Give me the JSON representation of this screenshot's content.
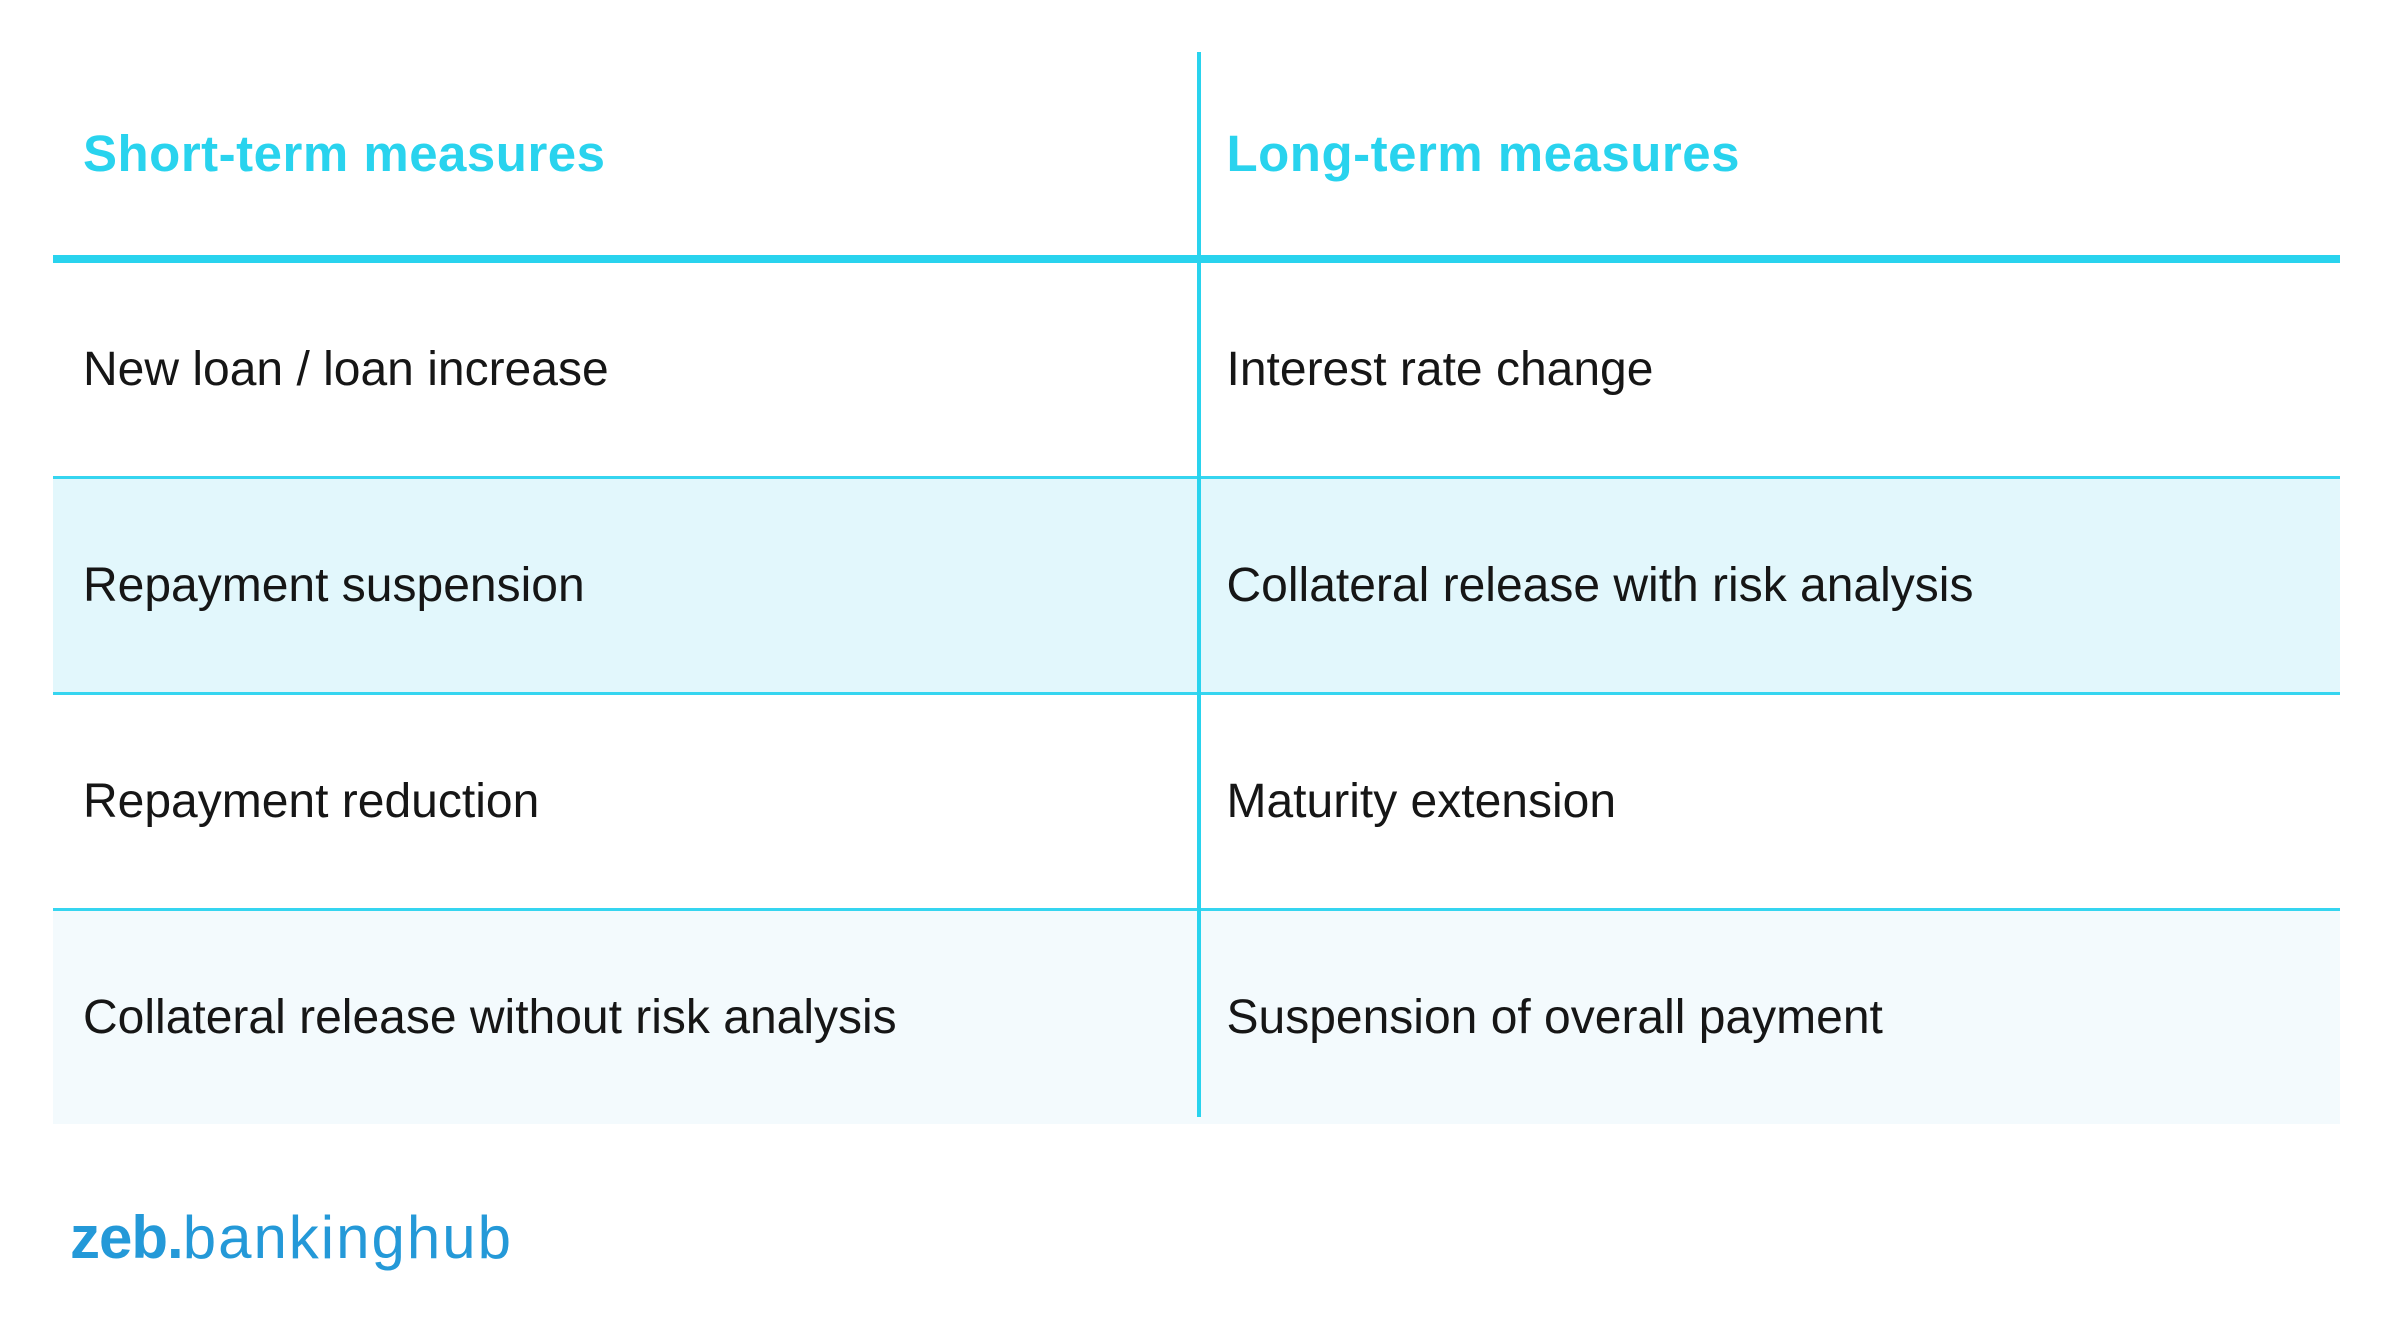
{
  "table": {
    "columns": [
      {
        "label": "Short-term measures"
      },
      {
        "label": "Long-term measures"
      }
    ],
    "rows": [
      {
        "cells": [
          "New loan / loan increase",
          "Interest rate change"
        ],
        "shaded": false
      },
      {
        "cells": [
          "Repayment suspension",
          "Collateral release with risk analysis"
        ],
        "shaded": true
      },
      {
        "cells": [
          "Repayment reduction",
          "Maturity extension"
        ],
        "shaded": false
      },
      {
        "cells": [
          "Collateral release without risk analysis",
          "Suspension of overall payment"
        ],
        "shaded": true
      }
    ]
  },
  "footer": {
    "logo_bold": "zeb.",
    "logo_light": "bankinghub"
  },
  "colors": {
    "accent_cyan": "#29d3ee",
    "shaded_row_strong": "#e2f7fc",
    "shaded_row_light": "#f3fafd",
    "body_text": "#161616",
    "logo_blue": "#2499d8"
  },
  "chart_data": {
    "type": "table",
    "columns": [
      "Short-term measures",
      "Long-term measures"
    ],
    "rows": [
      [
        "New loan / loan increase",
        "Interest rate change"
      ],
      [
        "Repayment suspension",
        "Collateral release with risk analysis"
      ],
      [
        "Repayment reduction",
        "Maturity extension"
      ],
      [
        "Collateral release without risk analysis",
        "Suspension of overall payment"
      ]
    ],
    "layout_hints": {
      "header_text_color": "#29d3ee",
      "alternating_row_shading": [
        false,
        true,
        false,
        true
      ],
      "column_divider": "vertical cyan line",
      "header_underline": "thick cyan rule"
    }
  }
}
